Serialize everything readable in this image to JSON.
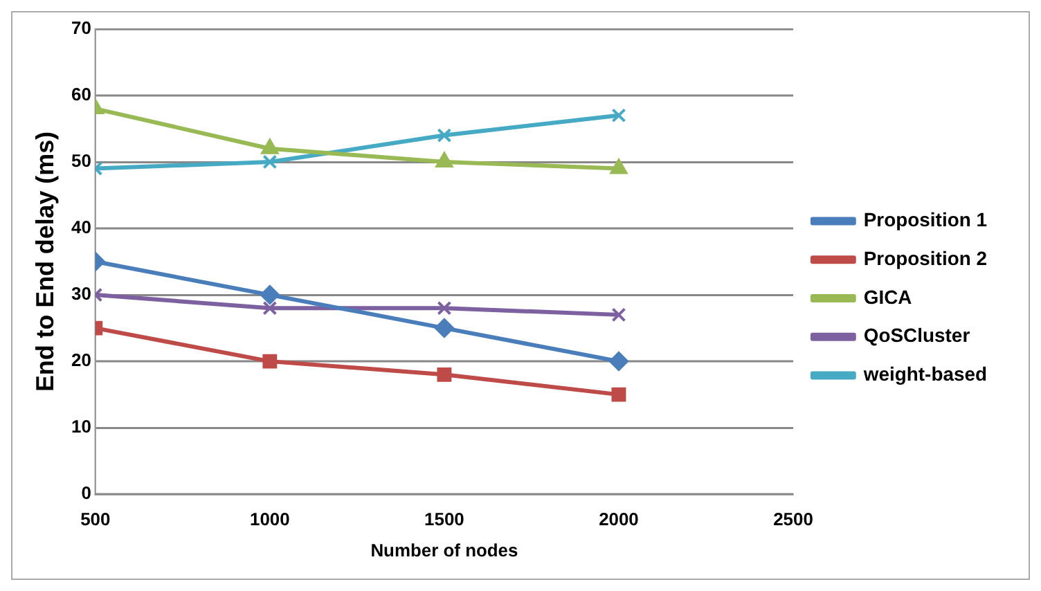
{
  "chart_data": {
    "type": "line",
    "xlabel": "Number of nodes",
    "ylabel": "End to End delay (ms)",
    "x": [
      500,
      1000,
      1500,
      2000
    ],
    "xlim": [
      500,
      2500
    ],
    "xticks": [
      500,
      1000,
      1500,
      2000,
      2500
    ],
    "ylim": [
      0,
      70
    ],
    "yticks": [
      0,
      10,
      20,
      30,
      40,
      50,
      60,
      70
    ],
    "grid": "y",
    "legend": "right",
    "series": [
      {
        "name": "Proposition 1",
        "color": "#4a7ebb",
        "marker": "diamond",
        "values": [
          35,
          30,
          25,
          20
        ]
      },
      {
        "name": "Proposition 2",
        "color": "#be4b48",
        "marker": "square",
        "values": [
          25,
          20,
          18,
          15
        ]
      },
      {
        "name": "GICA",
        "color": "#98b954",
        "marker": "triangle",
        "values": [
          58,
          52,
          50,
          49
        ]
      },
      {
        "name": "QoSCluster",
        "color": "#7d60a0",
        "marker": "cross",
        "values": [
          30,
          28,
          28,
          27
        ]
      },
      {
        "name": "weight-based",
        "color": "#46aac5",
        "marker": "cross",
        "values": [
          49,
          50,
          54,
          57
        ]
      }
    ]
  }
}
